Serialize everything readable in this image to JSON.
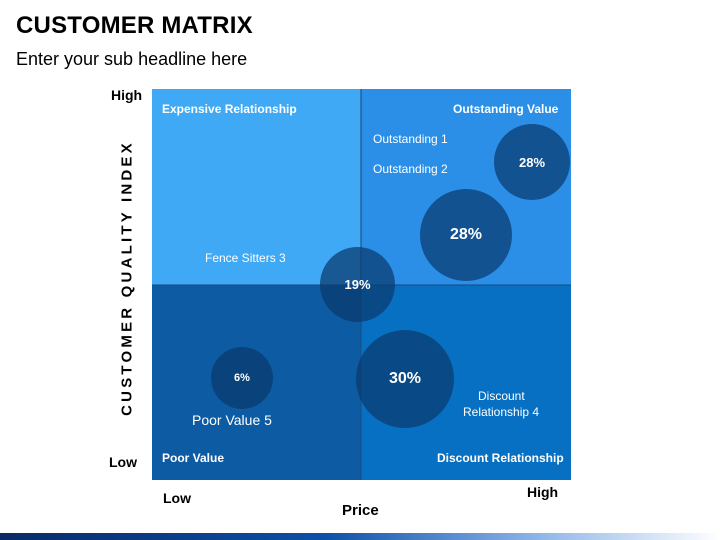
{
  "title": "CUSTOMER MATRIX",
  "subtitle": "Enter your sub headline here",
  "axes": {
    "y_label": "CUSTOMER QUALITY INDEX",
    "x_label": "Price",
    "y_high": "High",
    "y_low": "Low",
    "x_low": "Low",
    "x_high": "High"
  },
  "quadrants": {
    "top_left": "Expensive Relationship",
    "top_right": "Outstanding Value",
    "bottom_left": "Poor Value",
    "bottom_right": "Discount Relationship"
  },
  "labels": {
    "outstanding_1": "Outstanding 1",
    "outstanding_2": "Outstanding 2",
    "fence_sitters": "Fence Sitters 3",
    "discount_relationship_line1": "Discount",
    "discount_relationship_line2": "Relationship 4",
    "poor_value": "Poor Value 5"
  },
  "bubbles": {
    "outstanding_small": "28%",
    "outstanding_large": "28%",
    "fence_sitters": "19%",
    "discount": "30%",
    "poor_value": "6%"
  },
  "colors": {
    "top_left": "#3fa9f5",
    "top_right": "#2b8fe8",
    "bottom_left": "#0d5ba3",
    "bottom_right": "#0870c2",
    "bubble": "#0a3a6e"
  }
}
